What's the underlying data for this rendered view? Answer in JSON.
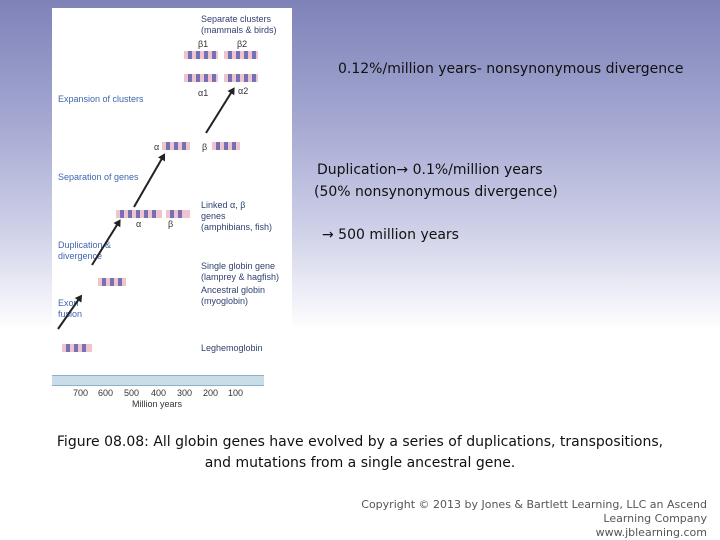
{
  "figure": {
    "labels_left": {
      "expansion": "Expansion of clusters",
      "separation": "Separation of genes",
      "duplication_l1": "Duplication &",
      "duplication_l2": "divergence",
      "exon_l1": "Exon",
      "exon_l2": "fusion"
    },
    "labels_right": {
      "separate_l1": "Separate clusters",
      "separate_l2": "(mammals & birds)",
      "linked_l1": "Linked α, β",
      "linked_l2": "genes",
      "linked_l3": "(amphibians, fish)",
      "single_l1": "Single globin gene",
      "single_l2": "(lamprey & hagfish)",
      "ancestral_l1": "Ancestral globin",
      "ancestral_l2": "(myoglobin)",
      "leghemoglobin": "Leghemoglobin"
    },
    "gene_labels": {
      "beta1": "β1",
      "beta2": "β2",
      "alpha1": "α1",
      "alpha2": "α2",
      "alpha_sep": "α",
      "beta_sep": "β",
      "alpha_link": "α",
      "beta_link": "β"
    },
    "time_axis": {
      "ticks": [
        "700",
        "600",
        "500",
        "400",
        "300",
        "200",
        "100"
      ],
      "label": "Million years"
    },
    "colors": {
      "gene_pink": "#f0c4cf",
      "gene_purple": "#7670b4",
      "left_label_blue": "#3f66ad"
    }
  },
  "text": {
    "line1": "0.12%/million years- nonsynonymous divergence",
    "line2": "Duplication",
    "line2b": " 0.1%/million years",
    "line3": "(50% nonsynonymous divergence)",
    "line4": " 500 million years",
    "arrow_glyph": "→"
  },
  "caption": {
    "line1": "Figure 08.08: All globin genes have evolved by a series of duplications, transpositions,",
    "line2": "and mutations from a single ancestral gene."
  },
  "copyright": {
    "line1": "Copyright © 2013 by Jones & Bartlett Learning, LLC an Ascend Learning Company",
    "line2": "www.jblearning.com"
  }
}
